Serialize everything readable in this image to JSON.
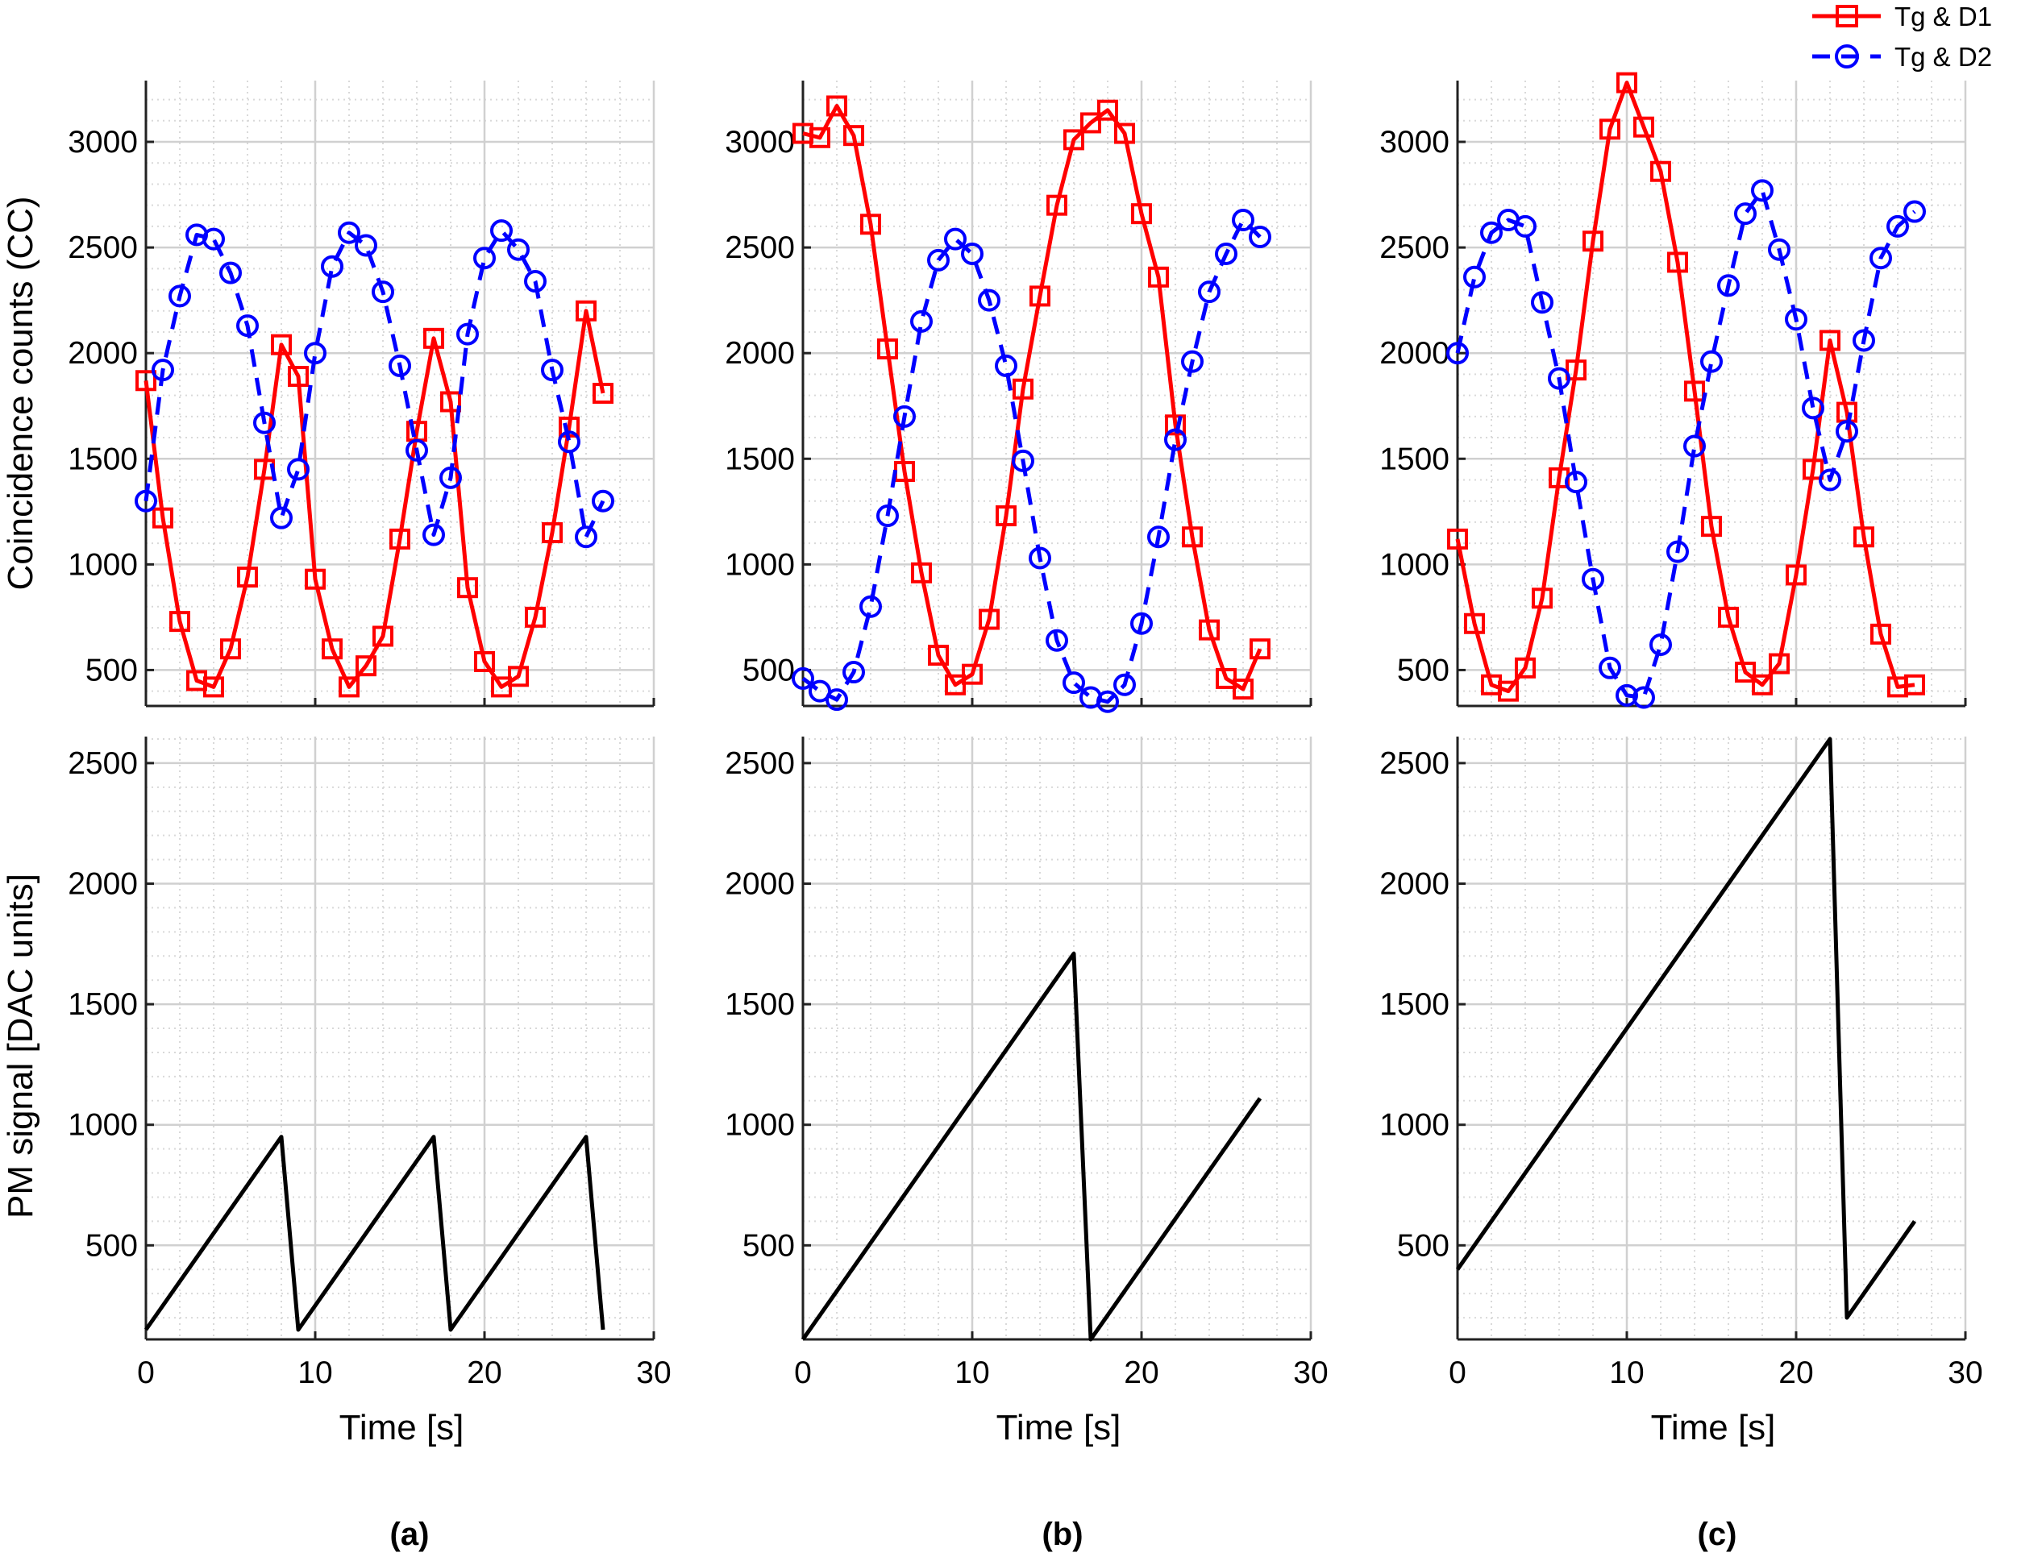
{
  "chart_data": {
    "type": "line",
    "legend": {
      "placement": "top-right",
      "entries": [
        {
          "label": "Tg & D1",
          "color": "#ff0000",
          "marker": "square",
          "style": "solid"
        },
        {
          "label": "Tg & D2",
          "color": "#0000ff",
          "marker": "circle",
          "style": "dashed"
        }
      ]
    },
    "top_ylabel": "Coincidence counts (CC)",
    "bottom_ylabel": "PM signal [DAC units]",
    "xlabel": "Time [s]",
    "xlim": [
      0,
      30
    ],
    "xticks": [
      "0",
      "10",
      "20",
      "30"
    ],
    "top_ylim": [
      330,
      3290
    ],
    "top_yticks": [
      "500",
      "1000",
      "1500",
      "2000",
      "2500",
      "3000"
    ],
    "bottom_ylim": [
      110,
      2610
    ],
    "bottom_yticks": [
      "500",
      "1000",
      "1500",
      "2000",
      "2500"
    ],
    "grid": true,
    "panels": [
      {
        "label": "(a)",
        "x": [
          0,
          1,
          2,
          3,
          4,
          5,
          6,
          7,
          8,
          9,
          10,
          11,
          12,
          13,
          14,
          15,
          16,
          17,
          18,
          19,
          20,
          21,
          22,
          23,
          24,
          25,
          26,
          27
        ],
        "series": [
          {
            "name": "Tg & D1",
            "color": "#ff0000",
            "values": [
              1870,
              1220,
              730,
              450,
              420,
              600,
              940,
              1450,
              2040,
              1890,
              930,
              600,
              420,
              520,
              660,
              1120,
              1630,
              2070,
              1770,
              890,
              540,
              420,
              470,
              750,
              1150,
              1650,
              2200,
              1810
            ]
          },
          {
            "name": "Tg & D2",
            "color": "#0000ff",
            "values": [
              1300,
              1920,
              2270,
              2560,
              2540,
              2380,
              2130,
              1670,
              1220,
              1450,
              2000,
              2410,
              2570,
              2510,
              2290,
              1940,
              1540,
              1140,
              1410,
              2090,
              2450,
              2580,
              2490,
              2340,
              1920,
              1580,
              1130,
              1300
            ]
          }
        ],
        "pm": {
          "x": [
            0,
            8,
            9,
            17,
            18,
            26,
            27
          ],
          "y": [
            150,
            950,
            150,
            950,
            150,
            950,
            150
          ]
        }
      },
      {
        "label": "(b)",
        "x": [
          0,
          1,
          2,
          3,
          4,
          5,
          6,
          7,
          8,
          9,
          10,
          11,
          12,
          13,
          14,
          15,
          16,
          17,
          18,
          19,
          20,
          21,
          22,
          23,
          24,
          25,
          26,
          27
        ],
        "series": [
          {
            "name": "Tg & D1",
            "color": "#ff0000",
            "values": [
              3040,
              3020,
              3170,
              3030,
              2610,
              2020,
              1440,
              960,
              570,
              430,
              480,
              740,
              1230,
              1830,
              2270,
              2700,
              3010,
              3090,
              3150,
              3040,
              2660,
              2360,
              1660,
              1130,
              690,
              460,
              410,
              600
            ]
          },
          {
            "name": "Tg & D2",
            "color": "#0000ff",
            "values": [
              460,
              400,
              360,
              490,
              800,
              1230,
              1700,
              2150,
              2440,
              2540,
              2470,
              2250,
              1940,
              1490,
              1030,
              640,
              440,
              370,
              350,
              430,
              720,
              1130,
              1590,
              1960,
              2290,
              2470,
              2630,
              2550
            ]
          }
        ],
        "pm": {
          "x": [
            0,
            16,
            17,
            27
          ],
          "y": [
            110,
            1710,
            110,
            1110
          ]
        }
      },
      {
        "label": "(c)",
        "x": [
          0,
          1,
          2,
          3,
          4,
          5,
          6,
          7,
          8,
          9,
          10,
          11,
          12,
          13,
          14,
          15,
          16,
          17,
          18,
          19,
          20,
          21,
          22,
          23,
          24,
          25,
          26,
          27
        ],
        "series": [
          {
            "name": "Tg & D1",
            "color": "#ff0000",
            "values": [
              1120,
              720,
              430,
              400,
              510,
              840,
              1410,
              1920,
              2530,
              3060,
              3280,
              3070,
              2860,
              2430,
              1820,
              1180,
              750,
              490,
              430,
              530,
              950,
              1450,
              2060,
              1720,
              1130,
              670,
              420,
              430
            ]
          },
          {
            "name": "Tg & D2",
            "color": "#0000ff",
            "values": [
              2000,
              2360,
              2570,
              2630,
              2600,
              2240,
              1880,
              1390,
              930,
              510,
              380,
              370,
              620,
              1060,
              1560,
              1960,
              2320,
              2660,
              2770,
              2490,
              2160,
              1740,
              1400,
              1630,
              2060,
              2450,
              2600,
              2670
            ]
          }
        ],
        "pm": {
          "x": [
            0,
            22,
            23,
            27
          ],
          "y": [
            400,
            2600,
            200,
            600
          ]
        }
      }
    ]
  }
}
